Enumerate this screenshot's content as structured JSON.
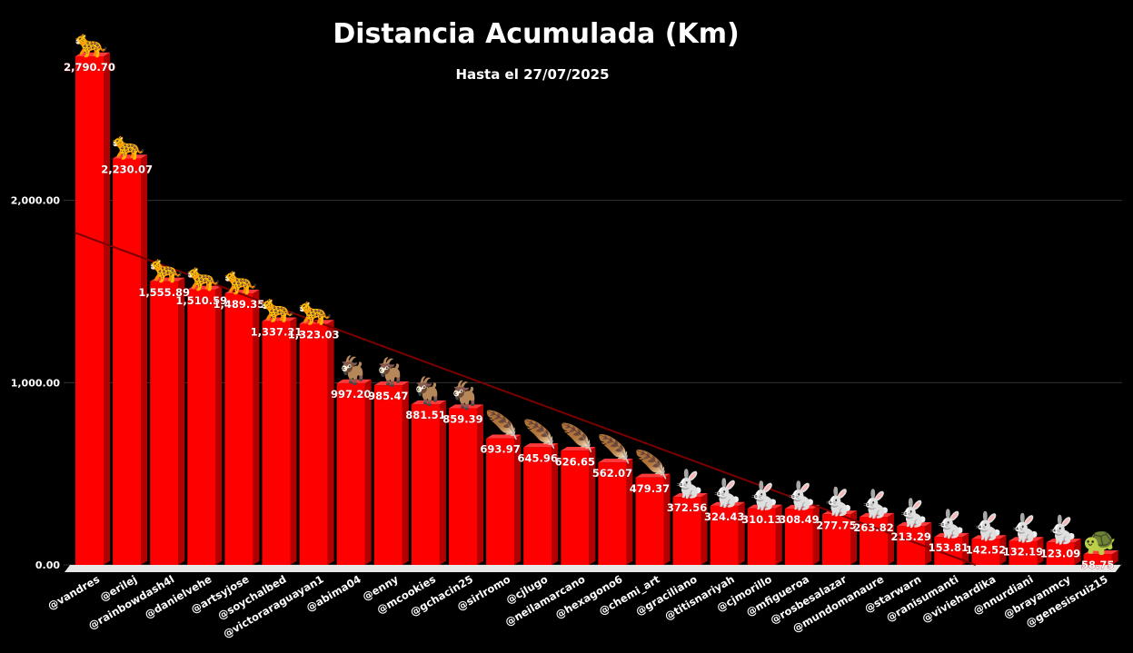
{
  "chart_data": {
    "type": "bar",
    "title": "Distancia Acumulada (Km)",
    "subtitle": "Hasta el 27/07/2025",
    "xlabel": "",
    "ylabel": "",
    "ylim": [
      0,
      2790.7
    ],
    "y_ticks": [
      "0.00",
      "1,000.00",
      "2,000.00"
    ],
    "y_tick_values": [
      0,
      1000,
      2000
    ],
    "grid": true,
    "trendline": true,
    "colors": {
      "bar": "#ff0000",
      "bar_side": "#b30000",
      "bar_top": "#ff3a3a",
      "trend": "#7a0000",
      "grid": "#333333",
      "text": "#ffffff"
    },
    "categories": [
      "@vandres",
      "@erilej",
      "@rainbowdash4l",
      "@danielvehe",
      "@artsyjose",
      "@soychalbed",
      "@victoraraguayan1",
      "@abima04",
      "@enny",
      "@mcookies",
      "@gchacin25",
      "@sirlromo",
      "@cjlugo",
      "@neilamarcano",
      "@hexagono6",
      "@chemi_art",
      "@graciliano",
      "@titisnariyah",
      "@cjmorillo",
      "@mfigueroa",
      "@rosbesalazar",
      "@mundomanaure",
      "@starwarn",
      "@ranisumanti",
      "@viviehardika",
      "@nnurdiani",
      "@brayanmcy",
      "@genesisruiz15"
    ],
    "values": [
      2790.7,
      2230.07,
      1555.89,
      1510.59,
      1489.35,
      1337.21,
      1323.03,
      997.2,
      985.47,
      881.51,
      859.39,
      693.97,
      645.96,
      626.65,
      562.07,
      479.37,
      372.56,
      324.43,
      310.13,
      308.49,
      277.75,
      263.82,
      213.29,
      153.81,
      142.52,
      132.19,
      123.09,
      58.75
    ],
    "value_labels": [
      "2,790.70",
      "2,230.07",
      "1,555.89",
      "1,510.59",
      "1,489.35",
      "1,337.21",
      "1,323.03",
      "997.20",
      "985.47",
      "881.51",
      "859.39",
      "693.97",
      "645.96",
      "626.65",
      "562.07",
      "479.37",
      "372.56",
      "324.43",
      "310.13",
      "308.49",
      "277.75",
      "263.82",
      "213.29",
      "153.81",
      "142.52",
      "132.19",
      "123.09",
      "58.75"
    ],
    "icons": [
      "leopard",
      "leopard",
      "leopard",
      "leopard",
      "leopard",
      "leopard",
      "leopard",
      "deer",
      "deer",
      "deer",
      "deer",
      "feather",
      "feather",
      "feather",
      "feather",
      "feather",
      "rabbit",
      "rabbit",
      "rabbit",
      "rabbit",
      "rabbit",
      "rabbit",
      "rabbit",
      "rabbit",
      "rabbit",
      "rabbit",
      "rabbit",
      "turtle"
    ],
    "icon_glyphs": {
      "leopard": "🐆",
      "deer": "🐐",
      "feather": "🪶",
      "rabbit": "🐇",
      "turtle": "🐢"
    }
  }
}
